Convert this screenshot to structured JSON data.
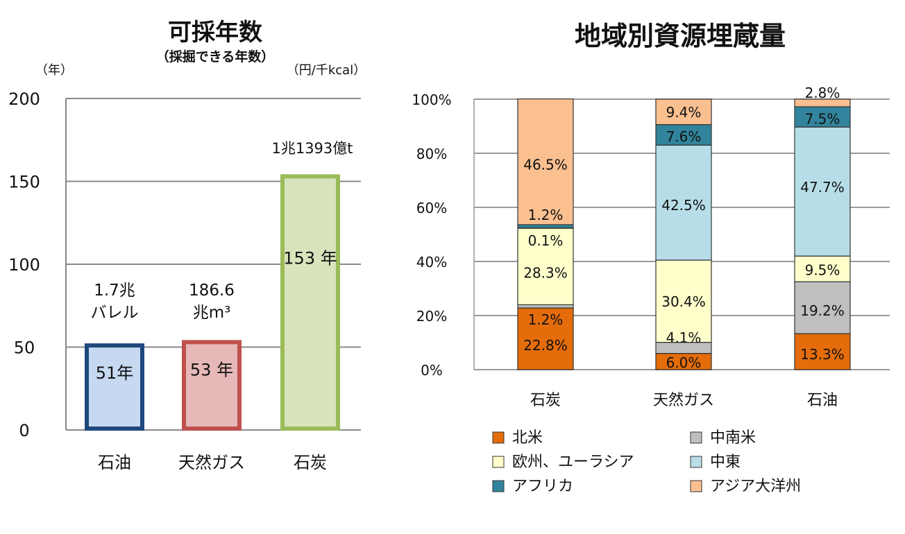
{
  "chart_data": [
    {
      "type": "bar",
      "title": "可採年数",
      "subtitle": "（採掘できる年数）",
      "ylabel": "（年）",
      "extra_label": "（円/千kcal）",
      "ylim": [
        0,
        200
      ],
      "yticks": [
        "0",
        "50",
        "100",
        "150",
        "200"
      ],
      "grid": true,
      "categories": [
        "石油",
        "天然ガス",
        "石炭"
      ],
      "values": [
        51,
        53,
        153
      ],
      "data_labels": [
        "51年",
        "53 年",
        "153 年"
      ],
      "reserve_labels": [
        [
          "1.7兆",
          "バレル"
        ],
        [
          "186.6",
          "兆m³"
        ],
        [
          "1兆1393億t"
        ]
      ],
      "colors": [
        {
          "border": "#1F497D",
          "fill": "#C6D9F1"
        },
        {
          "border": "#C0504D",
          "fill": "#E6B9B8"
        },
        {
          "border": "#9BBB59",
          "fill": "#D7E4BD"
        }
      ]
    },
    {
      "type": "bar",
      "stacked": true,
      "title": "地域別資源埋蔵量",
      "ylim": [
        0,
        100
      ],
      "yticks": [
        "0%",
        "20%",
        "40%",
        "60%",
        "80%",
        "100%"
      ],
      "grid": true,
      "legend_position": "bottom",
      "categories": [
        "石炭",
        "天然ガス",
        "石油"
      ],
      "series": [
        {
          "name": "北米",
          "color": "#E46C0A",
          "values": [
            22.8,
            6.0,
            13.3
          ],
          "labels": [
            "22.8%",
            "6.0%",
            "13.3%"
          ]
        },
        {
          "name": "中南米",
          "color": "#BFBFBF",
          "values": [
            1.2,
            4.1,
            19.2
          ],
          "labels": [
            "1.2%",
            "4.1%",
            "19.2%"
          ]
        },
        {
          "name": "欧州、ユーラシア",
          "color": "#FFFFCC",
          "values": [
            28.3,
            30.4,
            9.5
          ],
          "labels": [
            "28.3%",
            "30.4%",
            "9.5%"
          ]
        },
        {
          "name": "中東",
          "color": "#B7DEE8",
          "values": [
            0.1,
            42.5,
            47.7
          ],
          "labels": [
            "0.1%",
            "42.5%",
            "47.7%"
          ]
        },
        {
          "name": "アフリカ",
          "color": "#31849B",
          "values": [
            1.2,
            7.6,
            7.5
          ],
          "labels": [
            "1.2%",
            "7.6%",
            "7.5%"
          ]
        },
        {
          "name": "アジア大洋州",
          "color": "#FAC090",
          "values": [
            46.5,
            9.4,
            2.8
          ],
          "labels": [
            "46.5%",
            "9.4%",
            "2.8%"
          ]
        }
      ]
    }
  ]
}
